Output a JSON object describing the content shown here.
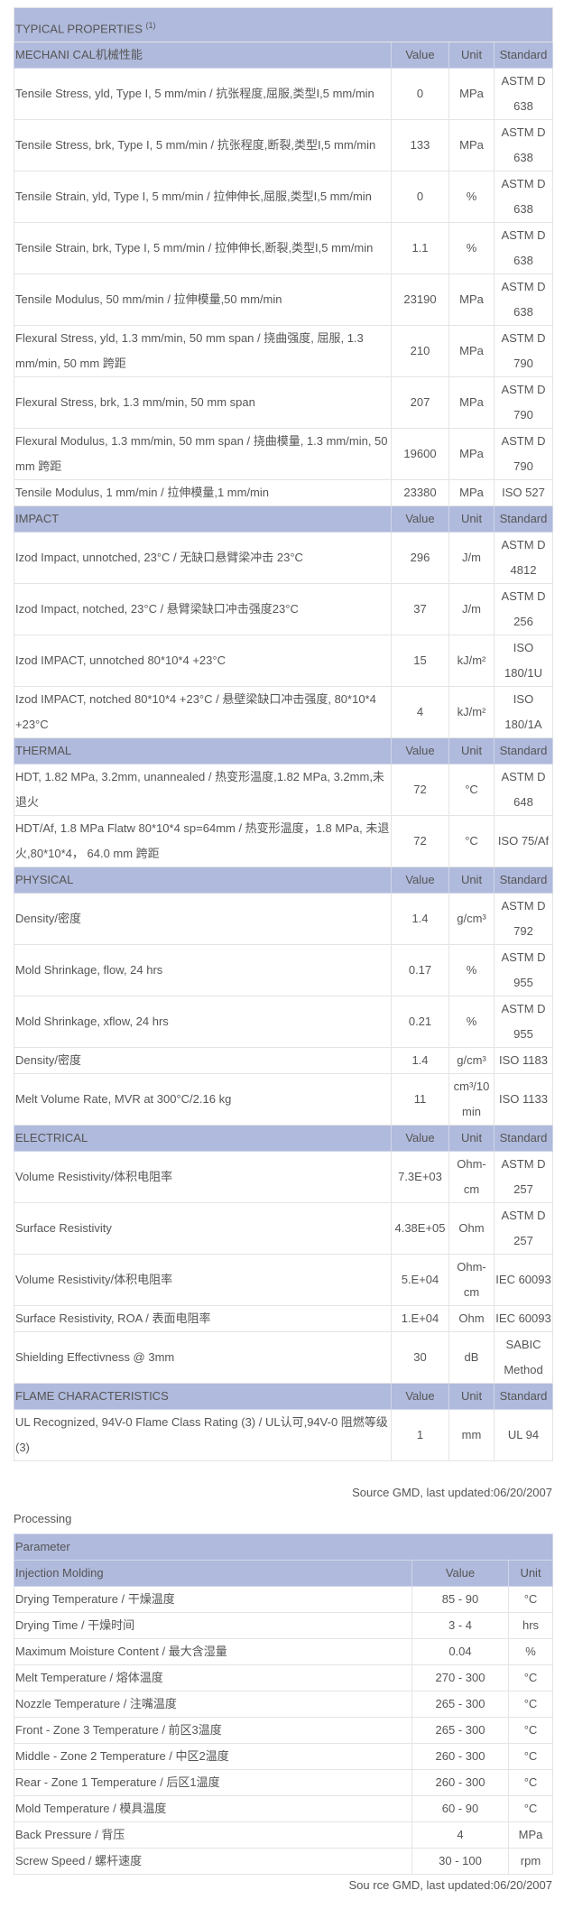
{
  "properties": {
    "title": "TYPICAL PROPERTIES",
    "title_note": "(1)",
    "columns": {
      "value": "Value",
      "unit": "Unit",
      "standard": "Standard"
    },
    "sections": [
      {
        "name": "MECHANI CAL机械性能",
        "rows": [
          {
            "label": "Tensile Stress, yld, Type I, 5 mm/min / 抗张程度,屈服,类型I,5 mm/min",
            "value": "0",
            "unit": "MPa",
            "standard": "ASTM D 638"
          },
          {
            "label": "Tensile Stress, brk, Type I, 5 mm/min / 抗张程度,断裂,类型I,5 mm/min",
            "value": "133",
            "unit": "MPa",
            "standard": "ASTM D 638"
          },
          {
            "label": "Tensile Strain, yld, Type I, 5 mm/min / 拉伸伸长,屈服,类型I,5 mm/min",
            "value": "0",
            "unit": "%",
            "standard": "ASTM D 638"
          },
          {
            "label": "Tensile Strain, brk, Type I, 5 mm/min / 拉伸伸长,断裂,类型I,5 mm/min",
            "value": "1.1",
            "unit": "%",
            "standard": "ASTM D 638"
          },
          {
            "label": "Tensile Modulus, 50 mm/min / 拉伸模量,50 mm/min",
            "value": "23190",
            "unit": "MPa",
            "standard": "ASTM D 638"
          },
          {
            "label": "Flexural Stress, yld, 1.3 mm/min, 50 mm span / 挠曲强度, 屈服, 1.3 mm/min, 50 mm 跨距",
            "value": "210",
            "unit": "MPa",
            "standard": "ASTM D 790"
          },
          {
            "label": "Flexural Stress, brk, 1.3 mm/min, 50 mm span",
            "value": "207",
            "unit": "MPa",
            "standard": "ASTM D 790"
          },
          {
            "label": "Flexural Modulus, 1.3 mm/min, 50 mm span / 挠曲模量, 1.3 mm/min, 50 mm 跨距",
            "value": "19600",
            "unit": "MPa",
            "standard": "ASTM D 790"
          },
          {
            "label": "Tensile Modulus, 1 mm/min / 拉伸模量,1 mm/min",
            "value": "23380",
            "unit": "MPa",
            "standard": "ISO 527"
          }
        ]
      },
      {
        "name": "IMPACT",
        "rows": [
          {
            "label": "Izod Impact, unnotched, 23°C / 无缺口悬臂梁冲击 23°C",
            "value": "296",
            "unit": "J/m",
            "standard": "ASTM D 4812"
          },
          {
            "label": "Izod Impact, notched, 23°C / 悬臂梁缺口冲击强度23°C",
            "value": "37",
            "unit": "J/m",
            "standard": "ASTM D 256"
          },
          {
            "label": "Izod IMPACT, unnotched 80*10*4 +23°C",
            "value": "15",
            "unit": "kJ/m²",
            "standard": "ISO 180/1U"
          },
          {
            "label": "Izod IMPACT, notched 80*10*4 +23°C / 悬壁梁缺口冲击强度, 80*10*4 +23°C",
            "value": "4",
            "unit": "kJ/m²",
            "standard": "ISO 180/1A"
          }
        ]
      },
      {
        "name": "THERMAL",
        "rows": [
          {
            "label": "HDT, 1.82 MPa, 3.2mm, unannealed / 热变形温度,1.82 MPa, 3.2mm,未退火",
            "value": "72",
            "unit": "°C",
            "standard": "ASTM D 648"
          },
          {
            "label": "HDT/Af, 1.8 MPa Flatw 80*10*4 sp=64mm / 热变形温度，1.8 MPa, 未退火,80*10*4， 64.0 mm 跨距",
            "value": "72",
            "unit": "°C",
            "standard": "ISO 75/Af"
          }
        ]
      },
      {
        "name": "PHYSICAL",
        "rows": [
          {
            "label": "Density/密度",
            "value": "1.4",
            "unit": "g/cm³",
            "standard": "ASTM D 792"
          },
          {
            "label": "Mold Shrinkage, flow, 24 hrs",
            "value": "0.17",
            "unit": "%",
            "standard": "ASTM D 955"
          },
          {
            "label": "Mold Shrinkage, xflow, 24 hrs",
            "value": "0.21",
            "unit": "%",
            "standard": "ASTM D 955"
          },
          {
            "label": "Density/密度",
            "value": "1.4",
            "unit": "g/cm³",
            "standard": "ISO 1183"
          },
          {
            "label": "Melt Volume Rate, MVR at 300°C/2.16 kg",
            "value": "11",
            "unit": "cm³/10 min",
            "standard": "ISO 1133"
          }
        ]
      },
      {
        "name": "ELECTRICAL",
        "rows": [
          {
            "label": "Volume Resistivity/体积电阻率",
            "value": "7.3E+03",
            "unit": "Ohm-cm",
            "standard": "ASTM D 257"
          },
          {
            "label": "Surface Resistivity",
            "value": "4.38E+05",
            "unit": "Ohm",
            "standard": "ASTM D 257"
          },
          {
            "label": "Volume Resistivity/体积电阻率",
            "value": "5.E+04",
            "unit": "Ohm-cm",
            "standard": "IEC 60093"
          },
          {
            "label": "Surface Resistivity, ROA / 表面电阻率",
            "value": "1.E+04",
            "unit": "Ohm",
            "standard": "IEC 60093"
          },
          {
            "label": "Shielding Effectivness @ 3mm",
            "value": "30",
            "unit": "dB",
            "standard": "SABIC Method"
          }
        ]
      },
      {
        "name": "FLAME CHARACTERISTICS",
        "rows": [
          {
            "label": "UL Recognized, 94V-0 Flame Class Rating (3) / UL认可,94V-0 阻燃等级(3)",
            "value": "1",
            "unit": "mm",
            "standard": "UL 94"
          }
        ]
      }
    ],
    "source": "Source GMD, last updated:06/20/2007"
  },
  "processing": {
    "label": "Processing",
    "title": "Parameter",
    "section": "Injection Molding",
    "columns": {
      "value": "Value",
      "unit": "Unit"
    },
    "rows": [
      {
        "label": "Drying Temperature / 干燥温度",
        "value": "85 - 90",
        "unit": "°C"
      },
      {
        "label": "Drying Time / 干燥时间",
        "value": "3 - 4",
        "unit": "hrs"
      },
      {
        "label": "Maximum Moisture Content / 最大含湿量",
        "value": "0.04",
        "unit": "%"
      },
      {
        "label": "Melt Temperature / 熔体温度",
        "value": "270 - 300",
        "unit": "°C"
      },
      {
        "label": "Nozzle Temperature / 注嘴温度",
        "value": "265 - 300",
        "unit": "°C"
      },
      {
        "label": "Front - Zone 3 Temperature / 前区3温度",
        "value": "265 - 300",
        "unit": "°C"
      },
      {
        "label": "Middle - Zone 2 Temperature / 中区2温度",
        "value": "260 - 300",
        "unit": "°C"
      },
      {
        "label": "Rear - Zone 1 Temperature / 后区1温度",
        "value": "260 - 300",
        "unit": "°C"
      },
      {
        "label": "Mold Temperature / 模具温度",
        "value": "60 - 90",
        "unit": "°C"
      },
      {
        "label": "Back Pressure / 背压",
        "value": "4",
        "unit": "MPa"
      },
      {
        "label": "Screw Speed / 螺杆速度",
        "value": "30 - 100",
        "unit": "rpm"
      }
    ],
    "source": "Sou rce GMD, last updated:06/20/2007"
  }
}
